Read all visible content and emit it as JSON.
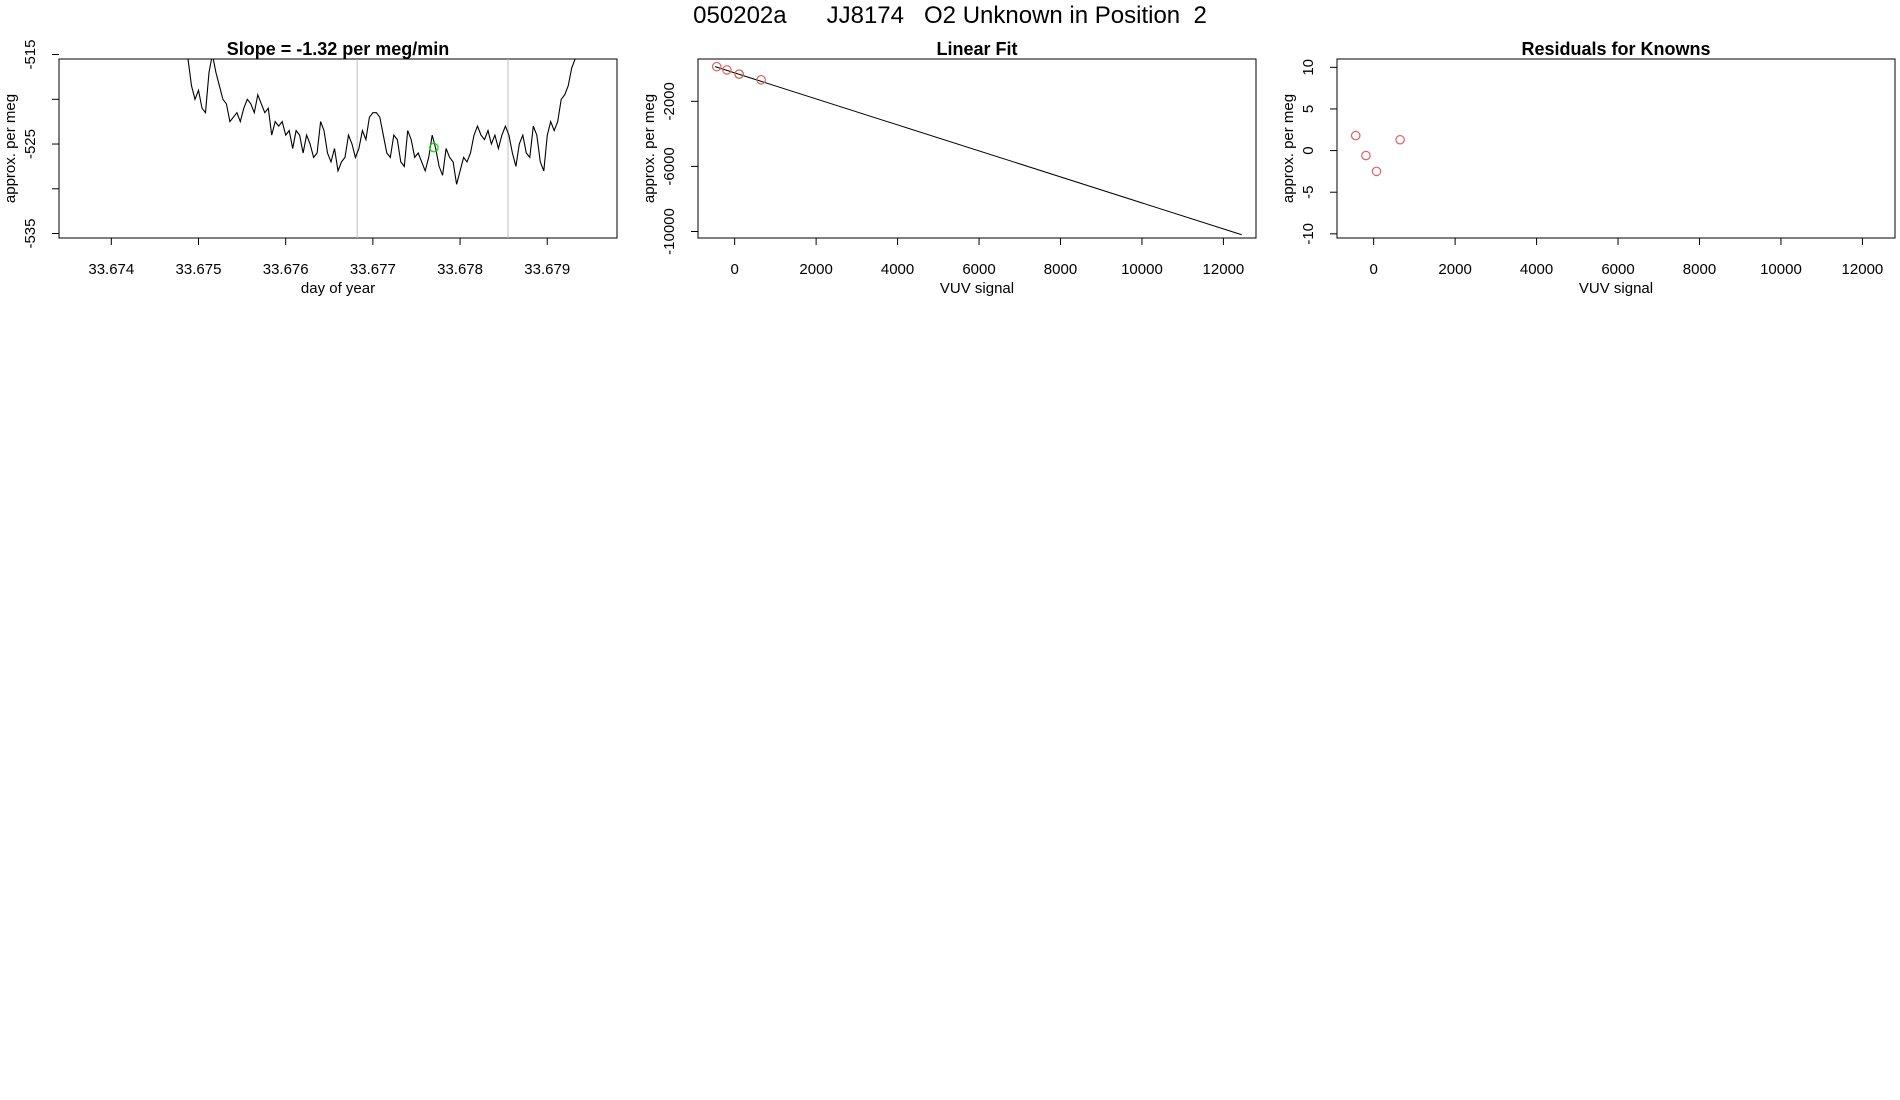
{
  "page": {
    "title": "050202a      JJ8174   O2 Unknown in Position  2"
  },
  "chart_data": [
    {
      "type": "line",
      "title": "Slope =  -1.32  per meg/min",
      "xlabel": "day of year",
      "ylabel": "approx. per meg",
      "xlim": [
        33.6734,
        33.6798
      ],
      "ylim": [
        -535.5,
        -515.5
      ],
      "xticks": [
        33.674,
        33.675,
        33.676,
        33.677,
        33.678,
        33.679
      ],
      "xtick_labels": [
        "33.674",
        "33.675",
        "33.676",
        "33.677",
        "33.678",
        "33.679"
      ],
      "yticks": [
        -515,
        -520,
        -525,
        -530,
        -535
      ],
      "ytick_labels": [
        "-515",
        "",
        "-525",
        "",
        "-535"
      ],
      "vlines": [
        33.67682,
        33.67855
      ],
      "vline_color": "#bebebe",
      "series": [
        {
          "color": "#000000",
          "x": [
            33.67488,
            33.67492,
            33.67496,
            33.675,
            33.67504,
            33.67508,
            33.67512,
            33.67516,
            33.6752,
            33.67524,
            33.67528,
            33.67532,
            33.67536,
            33.6754,
            33.67544,
            33.67548,
            33.67552,
            33.67556,
            33.6756,
            33.67564,
            33.67568,
            33.67572,
            33.67576,
            33.6758,
            33.67584,
            33.67588,
            33.67592,
            33.67596,
            33.676,
            33.67604,
            33.67608,
            33.67612,
            33.67616,
            33.6762,
            33.67624,
            33.67628,
            33.67632,
            33.67636,
            33.6764,
            33.67644,
            33.67648,
            33.67652,
            33.67656,
            33.6766,
            33.67664,
            33.67668,
            33.67672,
            33.67676,
            33.6768,
            33.67684,
            33.67688,
            33.67692,
            33.67696,
            33.677,
            33.67704,
            33.67708,
            33.67712,
            33.67716,
            33.6772,
            33.67724,
            33.67728,
            33.67732,
            33.67736,
            33.6774,
            33.67744,
            33.67748,
            33.67752,
            33.67756,
            33.6776,
            33.67764,
            33.67768,
            33.67772,
            33.67776,
            33.6778,
            33.67784,
            33.67788,
            33.67792,
            33.67796,
            33.678,
            33.67804,
            33.67808,
            33.67812,
            33.67816,
            33.6782,
            33.67824,
            33.67828,
            33.67832,
            33.67836,
            33.6784,
            33.67844,
            33.67848,
            33.67852,
            33.67856,
            33.6786,
            33.67864,
            33.67868,
            33.67872,
            33.67876,
            33.6788,
            33.67884,
            33.67888,
            33.67892,
            33.67896,
            33.679,
            33.67904,
            33.67908,
            33.67912,
            33.67916,
            33.6792,
            33.67924,
            33.67928,
            33.67932
          ],
          "y": [
            -515.5,
            -518.5,
            -520,
            -519,
            -521,
            -521.5,
            -517,
            -515,
            -517,
            -518.5,
            -520,
            -520.5,
            -522.5,
            -522,
            -521.5,
            -522.5,
            -521,
            -520,
            -520.5,
            -521.5,
            -519.5,
            -520.5,
            -521.5,
            -521,
            -524,
            -522.5,
            -523,
            -522.5,
            -524,
            -523.5,
            -525.5,
            -523.5,
            -524,
            -526,
            -524,
            -525,
            -526.5,
            -526,
            -522.5,
            -523.5,
            -526,
            -527,
            -525.5,
            -528,
            -527,
            -526.5,
            -524,
            -525,
            -526.5,
            -525.5,
            -523.5,
            -524.5,
            -522,
            -521.5,
            -521.5,
            -522,
            -524,
            -526,
            -526.5,
            -524,
            -524.5,
            -527,
            -527.5,
            -523.5,
            -524.5,
            -526.5,
            -526,
            -527,
            -528,
            -526.5,
            -524,
            -525.5,
            -527.5,
            -528.5,
            -525.5,
            -526.5,
            -527,
            -529.5,
            -528,
            -526.5,
            -527,
            -526,
            -524,
            -523,
            -524,
            -524.5,
            -523.5,
            -525,
            -524,
            -525.5,
            -524,
            -523,
            -524,
            -526,
            -527.5,
            -525,
            -524,
            -526,
            -526.5,
            -523,
            -524,
            -527,
            -528,
            -524,
            -522.5,
            -523.5,
            -522.5,
            -520,
            -519.5,
            -518.5,
            -516.5,
            -515.5
          ]
        }
      ],
      "highlight_points": [
        {
          "x": 33.6777,
          "y": -525.4,
          "color": "#00dd00"
        }
      ]
    },
    {
      "type": "scatter",
      "title": "Linear Fit",
      "xlabel": "VUV signal",
      "ylabel": "approx. per meg",
      "xlim": [
        -900,
        12800
      ],
      "ylim": [
        -10400,
        600
      ],
      "xticks": [
        0,
        2000,
        4000,
        6000,
        8000,
        10000,
        12000
      ],
      "xtick_labels": [
        "0",
        "2000",
        "4000",
        "6000",
        "8000",
        "10000",
        "12000"
      ],
      "yticks": [
        -10000,
        -6000,
        -2000
      ],
      "ytick_labels": [
        "-10000",
        "-6000",
        "-2000"
      ],
      "fit_line": {
        "x": [
          -480,
          12450
        ],
        "y": 0,
        "y_end": -10200,
        "start_y": 130,
        "color": "#000000"
      },
      "points": [
        {
          "x": -440,
          "y": 130,
          "color": "#e06060"
        },
        {
          "x": -190,
          "y": -70,
          "color": "#e06060"
        },
        {
          "x": 110,
          "y": -330,
          "color": "#00dd00"
        },
        {
          "x": 110,
          "y": -330,
          "color": "#e06060"
        },
        {
          "x": 650,
          "y": -680,
          "color": "#e06060"
        }
      ]
    },
    {
      "type": "scatter",
      "title": "Residuals for Knowns",
      "xlabel": "VUV signal",
      "ylabel": "approx. per meg",
      "xlim": [
        -900,
        12800
      ],
      "ylim": [
        -10.5,
        11
      ],
      "xticks": [
        0,
        2000,
        4000,
        6000,
        8000,
        10000,
        12000
      ],
      "xtick_labels": [
        "0",
        "2000",
        "4000",
        "6000",
        "8000",
        "10000",
        "12000"
      ],
      "yticks": [
        -10,
        -5,
        0,
        5,
        10
      ],
      "ytick_labels": [
        "-10",
        "-5",
        "0",
        "5",
        "10"
      ],
      "points": [
        {
          "x": -440,
          "y": 1.8,
          "color": "#e06060"
        },
        {
          "x": -190,
          "y": -0.6,
          "color": "#e06060"
        },
        {
          "x": 70,
          "y": -2.5,
          "color": "#e06060"
        },
        {
          "x": 650,
          "y": 1.3,
          "color": "#e06060"
        }
      ]
    }
  ]
}
